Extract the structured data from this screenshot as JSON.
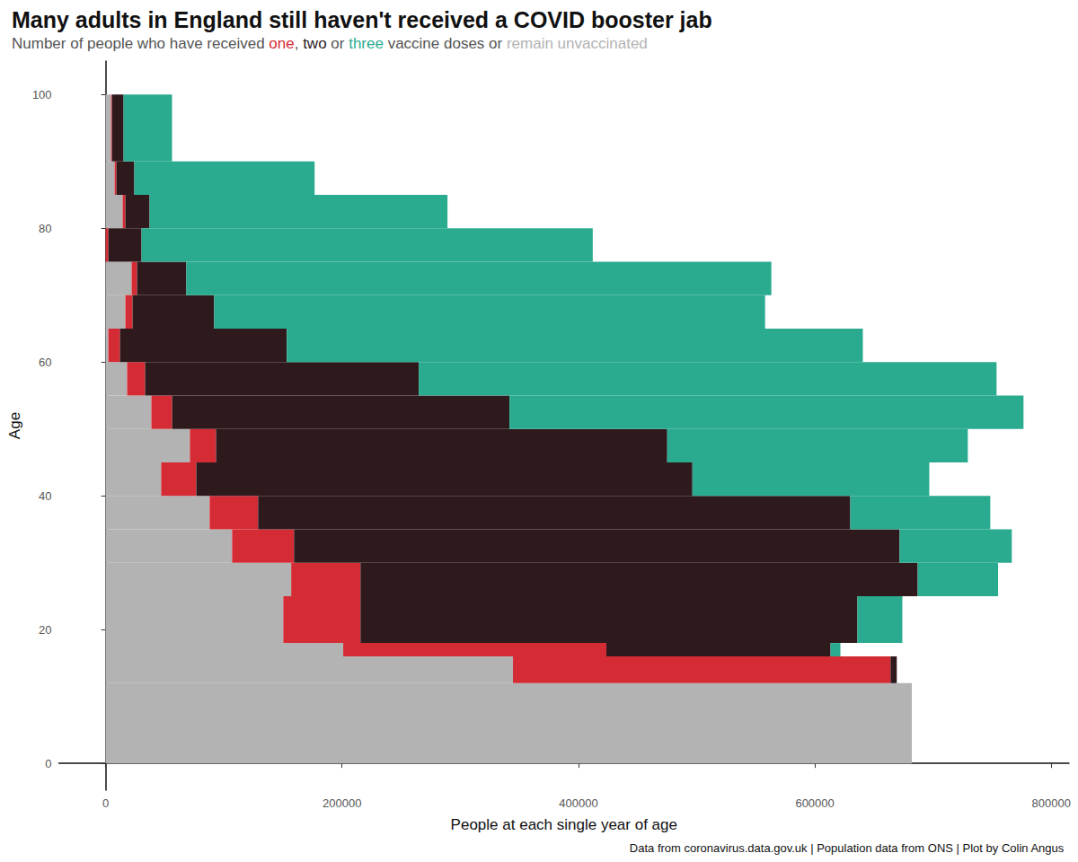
{
  "chart_data": {
    "type": "bar",
    "orientation": "horizontal",
    "stacked": true,
    "grid": false,
    "title": "Many adults in England still haven't received a COVID booster jab",
    "subtitle": "Number of people who have received one, two or three vaccine doses or remain unvaccinated",
    "caption": "Data from coronavirus.data.gov.uk | Population data from ONS | Plot by Colin Angus",
    "x_label": "People at each single year of age",
    "y_label": "Age",
    "bins": [
      0,
      12,
      16,
      18,
      25,
      30,
      35,
      40,
      45,
      50,
      55,
      60,
      65,
      70,
      75,
      80,
      85,
      90,
      100
    ],
    "series": [
      {
        "name": "remain unvaccinated",
        "color": "#b3b3b3",
        "values": [
          682000,
          344600,
          201000,
          150300,
          157000,
          107000,
          88000,
          47000,
          71300,
          38700,
          18200,
          2300,
          16700,
          22000,
          0,
          14400,
          7600,
          4600
        ]
      },
      {
        "name": "one",
        "color": "#d52b35",
        "values": [
          0,
          319400,
          222600,
          65300,
          58600,
          52400,
          41000,
          29700,
          22100,
          17500,
          15200,
          9800,
          6100,
          4600,
          2300,
          2300,
          1500,
          800
        ]
      },
      {
        "name": "two",
        "color": "#2e1a1d",
        "values": [
          0,
          5300,
          189700,
          420400,
          471400,
          512300,
          501000,
          419700,
          381700,
          285400,
          231500,
          141200,
          69000,
          41700,
          28100,
          20500,
          15200,
          9800
        ]
      },
      {
        "name": "three",
        "color": "#2aab8f",
        "values": [
          0,
          0,
          8300,
          38000,
          68000,
          94900,
          118400,
          200400,
          254300,
          434900,
          488800,
          487300,
          466100,
          494900,
          381700,
          252000,
          152500,
          41000
        ]
      }
    ],
    "xlim": [
      -39500,
      815000
    ],
    "xticks": [
      0,
      200000,
      400000,
      600000,
      800000
    ],
    "ylim": [
      -4,
      105
    ],
    "yticks": [
      0,
      20,
      40,
      60,
      80,
      100
    ]
  }
}
